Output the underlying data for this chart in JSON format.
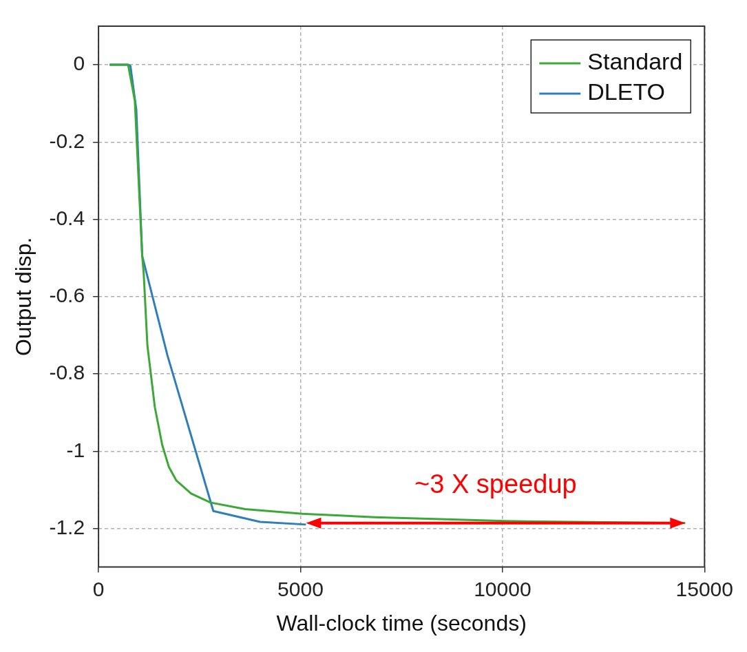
{
  "chart_data": {
    "type": "line",
    "xlabel": "Wall-clock time (seconds)",
    "ylabel": "Output disp.",
    "xlim": [
      0,
      15000
    ],
    "xticks": [
      0,
      5000,
      10000,
      15000
    ],
    "ylim": [
      -1.3,
      0.1
    ],
    "yticks": [
      0,
      -0.2,
      -0.4,
      -0.6,
      -0.8,
      -1,
      -1.2
    ],
    "grid": true,
    "legend": "top right",
    "marker": "none",
    "line_style": "solid",
    "annotations": [
      "~3 X speedup"
    ],
    "series": [
      {
        "name": "Standard",
        "color": "#3aa935",
        "x": [
          275,
          385,
          733,
          899,
          1082,
          1119,
          1210,
          1394,
          1577,
          1742,
          1926,
          2292,
          2769,
          3631,
          5043,
          6840,
          10068,
          14524
        ],
        "values": [
          0,
          0,
          0,
          -0.093,
          -0.495,
          -0.541,
          -0.726,
          -0.886,
          -0.984,
          -1.041,
          -1.076,
          -1.11,
          -1.133,
          -1.15,
          -1.162,
          -1.171,
          -1.181,
          -1.186
        ]
      },
      {
        "name": "DLETO",
        "color": "#2e7ebb",
        "x": [
          275,
          385,
          733,
          790,
          935,
          1082,
          1706,
          2842,
          3998,
          5135
        ],
        "values": [
          0,
          0,
          0,
          -0.003,
          -0.116,
          -0.495,
          -0.752,
          -1.155,
          -1.183,
          -1.19
        ]
      }
    ]
  }
}
